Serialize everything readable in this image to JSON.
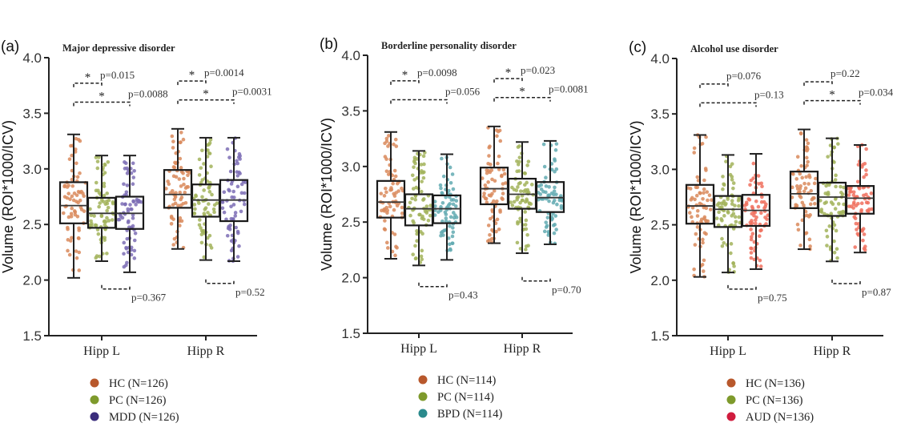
{
  "chart_data": [
    {
      "type": "box",
      "panel_label": "(a)",
      "title": "Major depressive disorder",
      "ylabel": "Volume (ROI*1000/ICV)",
      "ylim": [
        1.5,
        4.0
      ],
      "yticks": [
        "1.5",
        "2.0",
        "2.5",
        "3.0",
        "3.5",
        "4.0"
      ],
      "categories": [
        "Hipp L",
        "Hipp R"
      ],
      "groups": [
        {
          "name": "HC",
          "legend": "HC (N=126)",
          "color": "#d98a5c",
          "legend_color": "#b8582c"
        },
        {
          "name": "PC",
          "legend": "PC (N=126)",
          "color": "#a2b35a",
          "legend_color": "#7e9a2c"
        },
        {
          "name": "MDD",
          "legend": "MDD (N=126)",
          "color": "#7d6db5",
          "legend_color": "#3a2d7c"
        }
      ],
      "boxes": [
        [
          {
            "min": 2.02,
            "q1": 2.51,
            "median": 2.67,
            "q3": 2.88,
            "max": 3.31
          },
          {
            "min": 2.17,
            "q1": 2.47,
            "median": 2.6,
            "q3": 2.74,
            "max": 3.12
          },
          {
            "min": 2.07,
            "q1": 2.46,
            "median": 2.6,
            "q3": 2.75,
            "max": 3.12
          }
        ],
        [
          {
            "min": 2.28,
            "q1": 2.65,
            "median": 2.77,
            "q3": 2.99,
            "max": 3.36
          },
          {
            "min": 2.18,
            "q1": 2.57,
            "median": 2.72,
            "q3": 2.86,
            "max": 3.28
          },
          {
            "min": 2.17,
            "q1": 2.53,
            "median": 2.72,
            "q3": 2.9,
            "max": 3.28
          }
        ]
      ],
      "comparisons": [
        {
          "category": 0,
          "pair": [
            0,
            1
          ],
          "p": "p=0.015",
          "star": "*"
        },
        {
          "category": 0,
          "pair": [
            0,
            2
          ],
          "p": "p=0.0088",
          "star": "*"
        },
        {
          "category": 0,
          "pair": [
            1,
            2
          ],
          "p": "p=0.367",
          "star": ""
        },
        {
          "category": 1,
          "pair": [
            0,
            1
          ],
          "p": "p=0.0014",
          "star": "*"
        },
        {
          "category": 1,
          "pair": [
            0,
            2
          ],
          "p": "p=0.0031",
          "star": "*"
        },
        {
          "category": 1,
          "pair": [
            1,
            2
          ],
          "p": "p=0.52",
          "star": ""
        }
      ]
    },
    {
      "type": "box",
      "panel_label": "(b)",
      "title": "Borderline personality disorder",
      "ylabel": "Volume (ROI*1000/ICV)",
      "ylim": [
        1.5,
        4.0
      ],
      "yticks": [
        "1.5",
        "2.0",
        "2.5",
        "3.0",
        "3.5",
        "4.0"
      ],
      "categories": [
        "Hipp L",
        "Hipp R"
      ],
      "groups": [
        {
          "name": "HC",
          "legend": "HC (N=114)",
          "color": "#d98a5c",
          "legend_color": "#b8582c"
        },
        {
          "name": "PC",
          "legend": "PC (N=114)",
          "color": "#a2b35a",
          "legend_color": "#7e9a2c"
        },
        {
          "name": "BPD",
          "legend": "BPD (N=114)",
          "color": "#62aab2",
          "legend_color": "#2a8a8c"
        }
      ],
      "boxes": [
        [
          {
            "min": 2.17,
            "q1": 2.54,
            "median": 2.68,
            "q3": 2.87,
            "max": 3.31
          },
          {
            "min": 2.11,
            "q1": 2.47,
            "median": 2.62,
            "q3": 2.75,
            "max": 3.14
          },
          {
            "min": 2.16,
            "q1": 2.49,
            "median": 2.62,
            "q3": 2.74,
            "max": 3.11
          }
        ],
        [
          {
            "min": 2.31,
            "q1": 2.66,
            "median": 2.8,
            "q3": 2.99,
            "max": 3.36
          },
          {
            "min": 2.22,
            "q1": 2.62,
            "median": 2.75,
            "q3": 2.89,
            "max": 3.22
          },
          {
            "min": 2.3,
            "q1": 2.59,
            "median": 2.72,
            "q3": 2.86,
            "max": 3.23
          }
        ]
      ],
      "comparisons": [
        {
          "category": 0,
          "pair": [
            0,
            1
          ],
          "p": "p=0.0098",
          "star": "*"
        },
        {
          "category": 0,
          "pair": [
            0,
            2
          ],
          "p": "p=0.056",
          "star": ""
        },
        {
          "category": 0,
          "pair": [
            1,
            2
          ],
          "p": "p=0.43",
          "star": ""
        },
        {
          "category": 1,
          "pair": [
            0,
            1
          ],
          "p": "p=0.023",
          "star": "*"
        },
        {
          "category": 1,
          "pair": [
            0,
            2
          ],
          "p": "p=0.0081",
          "star": "*"
        },
        {
          "category": 1,
          "pair": [
            1,
            2
          ],
          "p": "p=0.70",
          "star": ""
        }
      ]
    },
    {
      "type": "box",
      "panel_label": "(c)",
      "title": "Alcohol use disorder",
      "ylabel": "Volume (ROI*1000/ICV)",
      "ylim": [
        1.5,
        4.0
      ],
      "yticks": [
        "1.5",
        "2.0",
        "2.5",
        "3.0",
        "3.5",
        "4.0"
      ],
      "categories": [
        "Hipp L",
        "Hipp R"
      ],
      "groups": [
        {
          "name": "HC",
          "legend": "HC (N=136)",
          "color": "#d98a5c",
          "legend_color": "#b8582c"
        },
        {
          "name": "PC",
          "legend": "PC (N=136)",
          "color": "#a2b35a",
          "legend_color": "#7e9a2c"
        },
        {
          "name": "AUD",
          "legend": "AUD (N=136)",
          "color": "#f0705e",
          "legend_color": "#d01c3e"
        }
      ],
      "boxes": [
        [
          {
            "min": 2.03,
            "q1": 2.51,
            "median": 2.67,
            "q3": 2.86,
            "max": 3.31
          },
          {
            "min": 2.07,
            "q1": 2.48,
            "median": 2.64,
            "q3": 2.76,
            "max": 3.13
          },
          {
            "min": 2.1,
            "q1": 2.49,
            "median": 2.63,
            "q3": 2.77,
            "max": 3.14
          }
        ],
        [
          {
            "min": 2.28,
            "q1": 2.65,
            "median": 2.78,
            "q3": 2.98,
            "max": 3.36
          },
          {
            "min": 2.17,
            "q1": 2.58,
            "median": 2.75,
            "q3": 2.88,
            "max": 3.28
          },
          {
            "min": 2.25,
            "q1": 2.6,
            "median": 2.74,
            "q3": 2.85,
            "max": 3.22
          }
        ]
      ],
      "comparisons": [
        {
          "category": 0,
          "pair": [
            0,
            1
          ],
          "p": "p=0.076",
          "star": ""
        },
        {
          "category": 0,
          "pair": [
            0,
            2
          ],
          "p": "p=0.13",
          "star": ""
        },
        {
          "category": 0,
          "pair": [
            1,
            2
          ],
          "p": "p=0.75",
          "star": ""
        },
        {
          "category": 1,
          "pair": [
            0,
            1
          ],
          "p": "p=0.22",
          "star": ""
        },
        {
          "category": 1,
          "pair": [
            0,
            2
          ],
          "p": "p=0.034",
          "star": "*"
        },
        {
          "category": 1,
          "pair": [
            1,
            2
          ],
          "p": "p=0.87",
          "star": ""
        }
      ]
    }
  ]
}
